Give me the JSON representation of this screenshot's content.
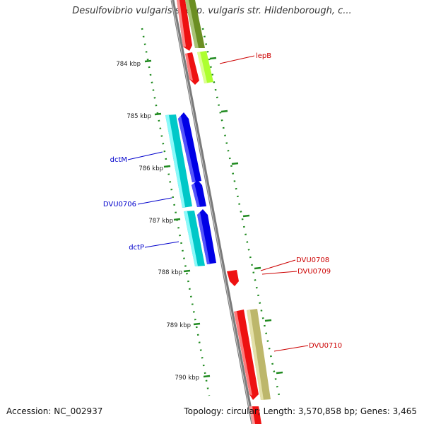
{
  "title": "Desulfovibrio vulgaris subsp. vulgaris str. Hildenborough, c...",
  "footer": {
    "accession": "Accession: NC_002937",
    "summary": "Topology: circular; Length: 3,570,858 bp; Genes: 3,465"
  },
  "ticks": [
    "784 kbp",
    "785 kbp",
    "786 kbp",
    "787 kbp",
    "788 kbp",
    "789 kbp",
    "790 kbp"
  ],
  "colors": {
    "backbone": "#808080",
    "tick_green": "#1f8a1f",
    "label_blue": "#0000cc",
    "label_red": "#cc0000",
    "blue": "#0000e6",
    "cyan": "#00c8c8",
    "red": "#ee0000",
    "olive": "#6b8e23",
    "lime": "#adff2f",
    "khaki": "#bdb76b"
  },
  "labels": {
    "lepB": "lepB",
    "dctM": "dctM",
    "DVU0706": "DVU0706",
    "dctP": "dctP",
    "DVU0708": "DVU0708",
    "DVU0709": "DVU0709",
    "DVU0710": "DVU0710"
  }
}
